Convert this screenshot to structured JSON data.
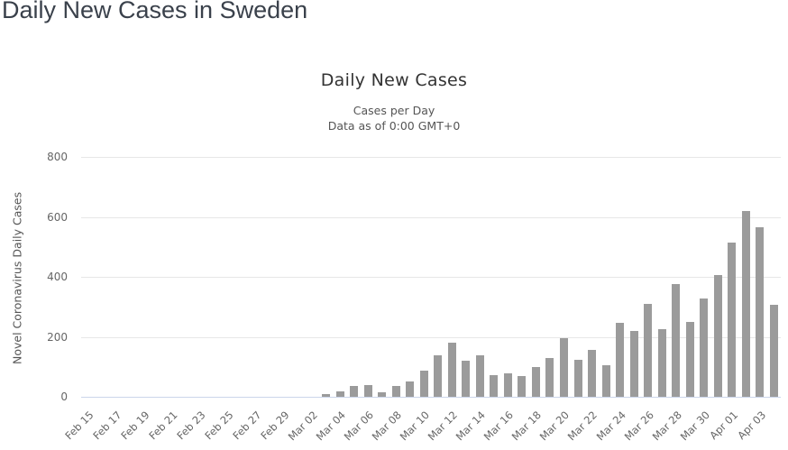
{
  "page": {
    "title": "Daily New Cases in Sweden"
  },
  "chart": {
    "title": "Daily New Cases",
    "subtitle_line1": "Cases per Day",
    "subtitle_line2": "Data as of 0:00 GMT+0",
    "y_axis_title": "Novel Coronavirus Daily Cases"
  },
  "colors": {
    "bar": "#9b9b9b",
    "gridline": "#e7e7e7",
    "axis_line": "#ccd6eb",
    "title": "#333333",
    "subtitle": "#555555",
    "axis_label": "#666666",
    "page_title": "#3a414b"
  },
  "chart_data": {
    "type": "bar",
    "title": "Daily New Cases",
    "subtitle": [
      "Cases per Day",
      "Data as of 0:00 GMT+0"
    ],
    "xlabel": "",
    "ylabel": "Novel Coronavirus Daily Cases",
    "ylim": [
      0,
      800
    ],
    "yticks": [
      0,
      200,
      400,
      600,
      800
    ],
    "grid": true,
    "legend": false,
    "x_tick_step": 2,
    "categories": [
      "Feb 15",
      "Feb 16",
      "Feb 17",
      "Feb 18",
      "Feb 19",
      "Feb 20",
      "Feb 21",
      "Feb 22",
      "Feb 23",
      "Feb 24",
      "Feb 25",
      "Feb 26",
      "Feb 27",
      "Feb 28",
      "Feb 29",
      "Mar 01",
      "Mar 02",
      "Mar 03",
      "Mar 04",
      "Mar 05",
      "Mar 06",
      "Mar 07",
      "Mar 08",
      "Mar 09",
      "Mar 10",
      "Mar 11",
      "Mar 12",
      "Mar 13",
      "Mar 14",
      "Mar 15",
      "Mar 16",
      "Mar 17",
      "Mar 18",
      "Mar 19",
      "Mar 20",
      "Mar 21",
      "Mar 22",
      "Mar 23",
      "Mar 24",
      "Mar 25",
      "Mar 26",
      "Mar 27",
      "Mar 28",
      "Mar 29",
      "Mar 30",
      "Mar 31",
      "Apr 01",
      "Apr 02",
      "Apr 03",
      "Apr 04"
    ],
    "values": [
      0,
      0,
      0,
      0,
      0,
      0,
      0,
      0,
      0,
      0,
      0,
      0,
      0,
      0,
      0,
      0,
      0,
      10,
      18,
      35,
      39,
      16,
      36,
      52,
      88,
      140,
      182,
      121,
      139,
      73,
      79,
      68,
      100,
      128,
      195,
      123,
      157,
      106,
      248,
      221,
      311,
      225,
      377,
      250,
      327,
      407,
      513,
      620,
      565,
      306
    ]
  }
}
